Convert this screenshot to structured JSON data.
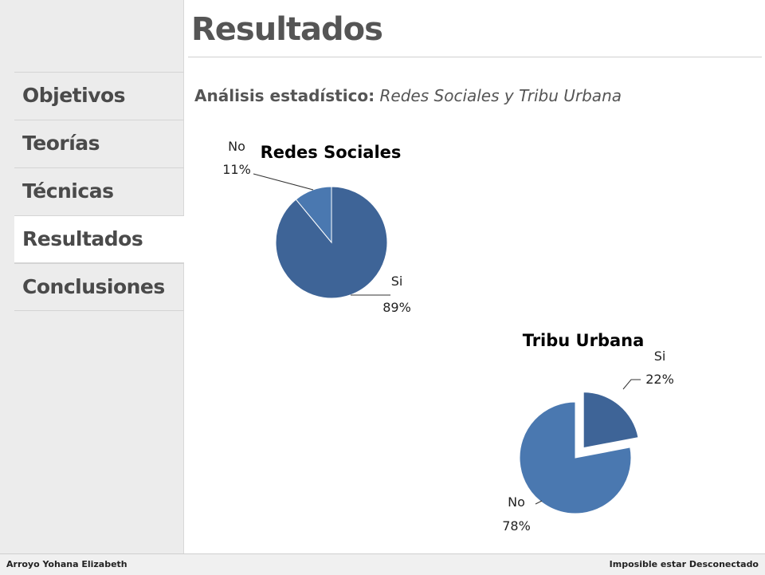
{
  "page": {
    "title": "Resultados"
  },
  "nav": {
    "items": [
      {
        "label": "Objetivos",
        "active": false
      },
      {
        "label": "Teorías",
        "active": false
      },
      {
        "label": "Técnicas",
        "active": false
      },
      {
        "label": "Resultados",
        "active": true
      },
      {
        "label": "Conclusiones",
        "active": false
      }
    ]
  },
  "subtitle": {
    "label": "Análisis estadístico:",
    "value": "Redes Sociales y Tribu Urbana"
  },
  "footer": {
    "left": "Arroyo Yohana Elizabeth",
    "right": "Imposible estar Desconectado"
  },
  "colors": {
    "dark_blue": "#3e6497",
    "light_blue": "#4a78b0",
    "nav_text": "#4a4a4a"
  },
  "chart_data": [
    {
      "type": "pie",
      "title": "Redes Sociales",
      "categories": [
        "Si",
        "No"
      ],
      "values": [
        89,
        11
      ],
      "labels": [
        "89%",
        "11%"
      ],
      "colors": [
        "#3e6497",
        "#4a78b0"
      ],
      "exploded": []
    },
    {
      "type": "pie",
      "title": "Tribu Urbana",
      "categories": [
        "Si",
        "No"
      ],
      "values": [
        22,
        78
      ],
      "labels": [
        "22%",
        "78%"
      ],
      "colors": [
        "#3e6497",
        "#4a78b0"
      ],
      "exploded": [
        "Si"
      ]
    }
  ]
}
